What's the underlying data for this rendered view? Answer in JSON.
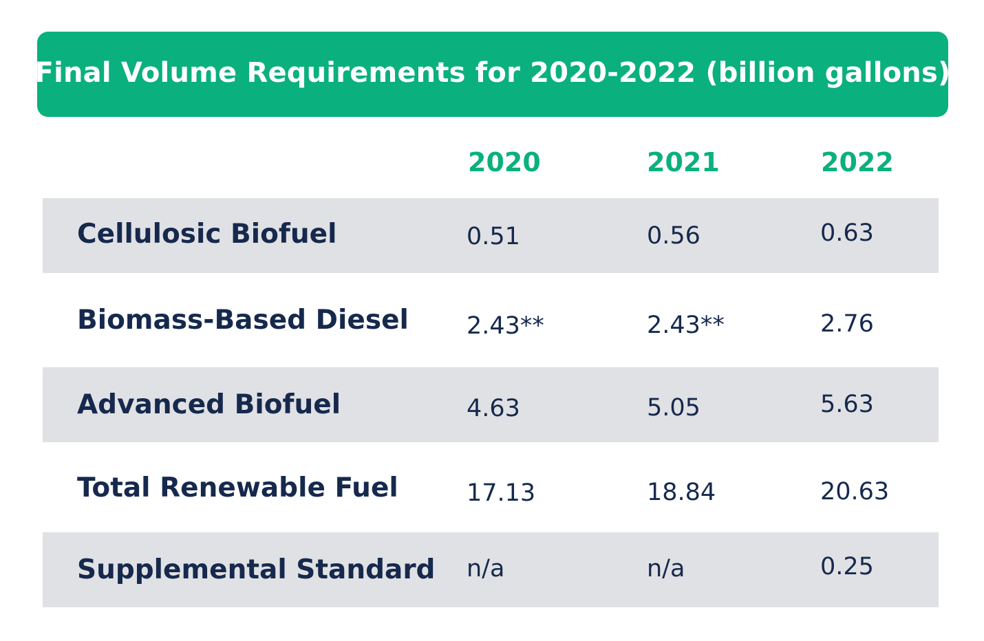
{
  "title": "Final Volume Requirements for 2020-2022 (billion gallons)",
  "colors": {
    "accent": "#0ab07e",
    "text": "#16294d",
    "row_shade": "#e0e1e4"
  },
  "table": {
    "columns": [
      "2020",
      "2021",
      "2022"
    ],
    "rows": [
      {
        "label": "Cellulosic Biofuel",
        "values": [
          "0.51",
          "0.56",
          "0.63"
        ]
      },
      {
        "label": "Biomass-Based Diesel",
        "values": [
          "2.43**",
          "2.43**",
          "2.76"
        ]
      },
      {
        "label": "Advanced Biofuel",
        "values": [
          "4.63",
          "5.05",
          "5.63"
        ]
      },
      {
        "label": "Total Renewable Fuel",
        "values": [
          "17.13",
          "18.84",
          "20.63"
        ]
      },
      {
        "label": "Supplemental Standard",
        "values": [
          "n/a",
          "n/a",
          "0.25"
        ]
      }
    ]
  }
}
